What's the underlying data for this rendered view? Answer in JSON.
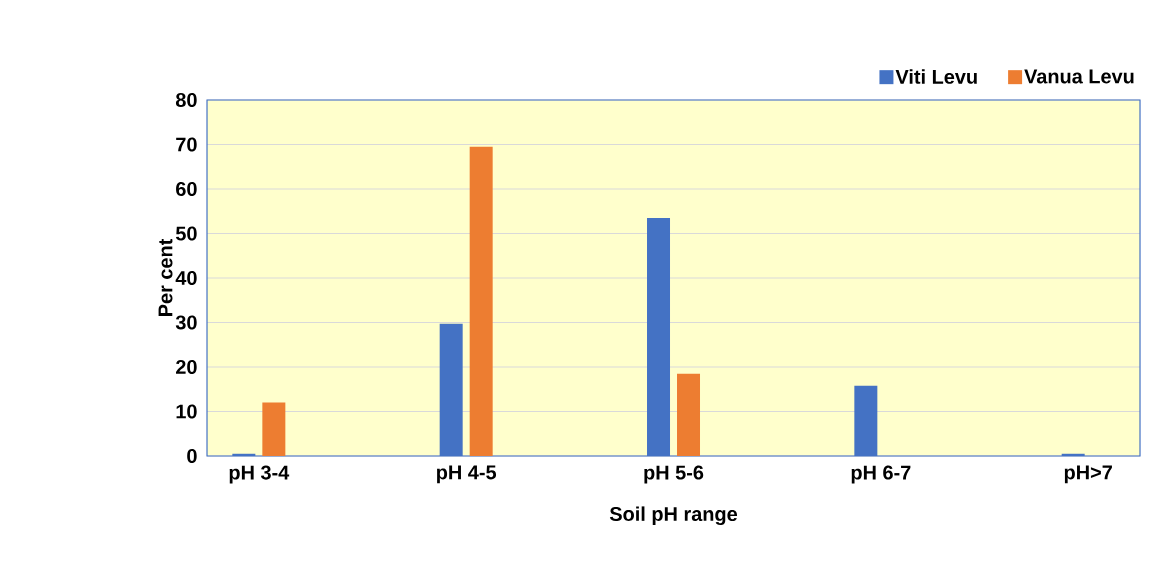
{
  "chart_data": {
    "type": "bar",
    "xlabel": "Soil pH range",
    "ylabel": "Per cent",
    "categories": [
      "pH 3-4",
      "pH 4-5",
      "pH 5-6",
      "pH 6-7",
      "pH>7"
    ],
    "series": [
      {
        "name": "Viti Levu",
        "color": "#4472c4",
        "values": [
          0.5,
          29.7,
          53.5,
          15.8,
          0.5
        ]
      },
      {
        "name": "Vanua Levu",
        "color": "#ed7d31",
        "values": [
          12,
          69.5,
          18.5,
          0,
          0
        ]
      }
    ],
    "ylim": [
      0,
      80
    ],
    "yticks": [
      0,
      10,
      20,
      30,
      40,
      50,
      60,
      70,
      80
    ],
    "grid": "y",
    "legend": "top right"
  }
}
